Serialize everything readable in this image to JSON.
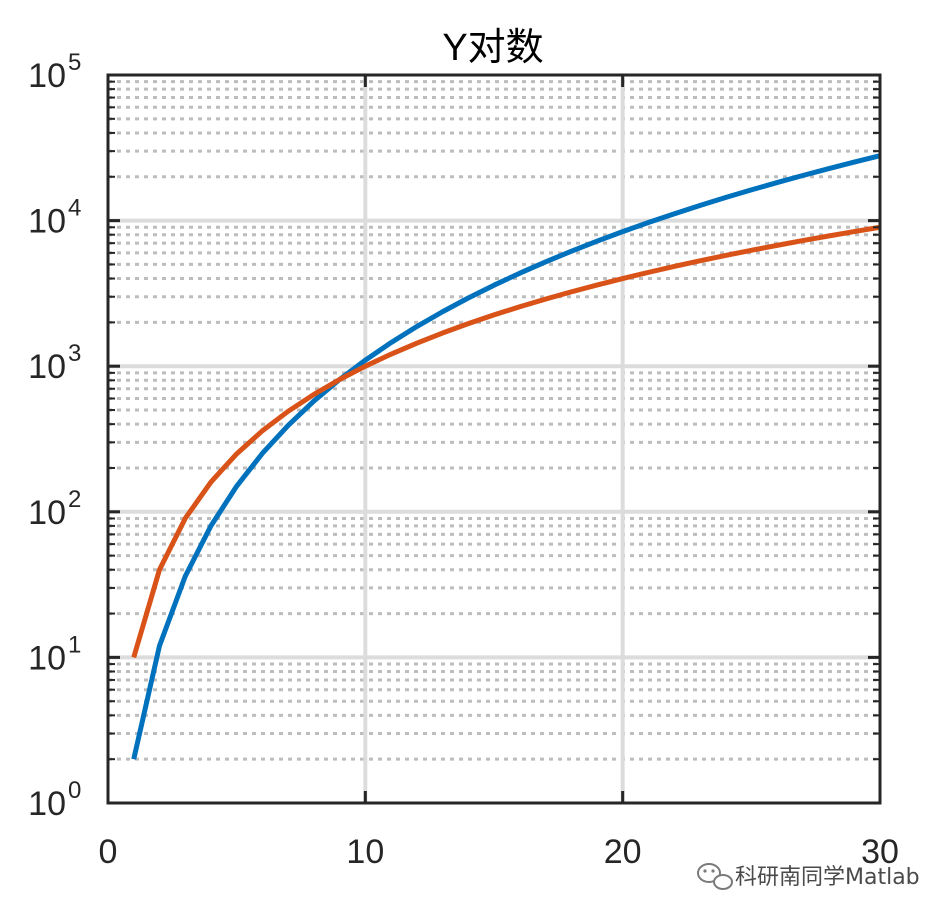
{
  "chart_data": {
    "type": "line",
    "title": "Y对数",
    "xlabel": "",
    "ylabel": "",
    "x": [
      1,
      2,
      3,
      4,
      5,
      6,
      7,
      8,
      9,
      10,
      11,
      12,
      13,
      14,
      15,
      16,
      17,
      18,
      19,
      20,
      21,
      22,
      23,
      24,
      25,
      26,
      27,
      28,
      29,
      30
    ],
    "xlim": [
      0,
      30
    ],
    "ylim": [
      1,
      100000
    ],
    "yscale": "log",
    "x_ticks": [
      {
        "value": 0,
        "label": "0"
      },
      {
        "value": 10,
        "label": "10"
      },
      {
        "value": 20,
        "label": "20"
      },
      {
        "value": 30,
        "label": "30"
      }
    ],
    "y_ticks": [
      {
        "value": 1,
        "base": "10",
        "exp": "0"
      },
      {
        "value": 10,
        "base": "10",
        "exp": "1"
      },
      {
        "value": 100,
        "base": "10",
        "exp": "2"
      },
      {
        "value": 1000,
        "base": "10",
        "exp": "3"
      },
      {
        "value": 10000,
        "base": "10",
        "exp": "4"
      },
      {
        "value": 100000,
        "base": "10",
        "exp": "5"
      }
    ],
    "grid": true,
    "minor_grid": true,
    "series": [
      {
        "color": "#0072BD",
        "values": [
          2,
          12,
          36,
          80,
          150,
          252,
          392,
          576,
          810,
          1100,
          1452,
          1872,
          2366,
          2940,
          3600,
          4352,
          5202,
          6156,
          7220,
          8400,
          9702,
          11132,
          12696,
          14400,
          16250,
          18252,
          20412,
          22736,
          25230,
          27900
        ]
      },
      {
        "color": "#D95319",
        "values": [
          10,
          40,
          90,
          160,
          250,
          360,
          490,
          640,
          810,
          1000,
          1210,
          1440,
          1690,
          1960,
          2250,
          2560,
          2890,
          3240,
          3610,
          4000,
          4410,
          4840,
          5290,
          5760,
          6250,
          6760,
          7290,
          7840,
          8410,
          9000
        ]
      }
    ]
  },
  "colors": {
    "axes": "#262626",
    "major_grid": "#dcdcdc",
    "minor_grid": "#bdbdbd",
    "background": "#ffffff"
  },
  "watermark": {
    "icon": "wechat-icon",
    "text": "科研南同学Matlab"
  }
}
